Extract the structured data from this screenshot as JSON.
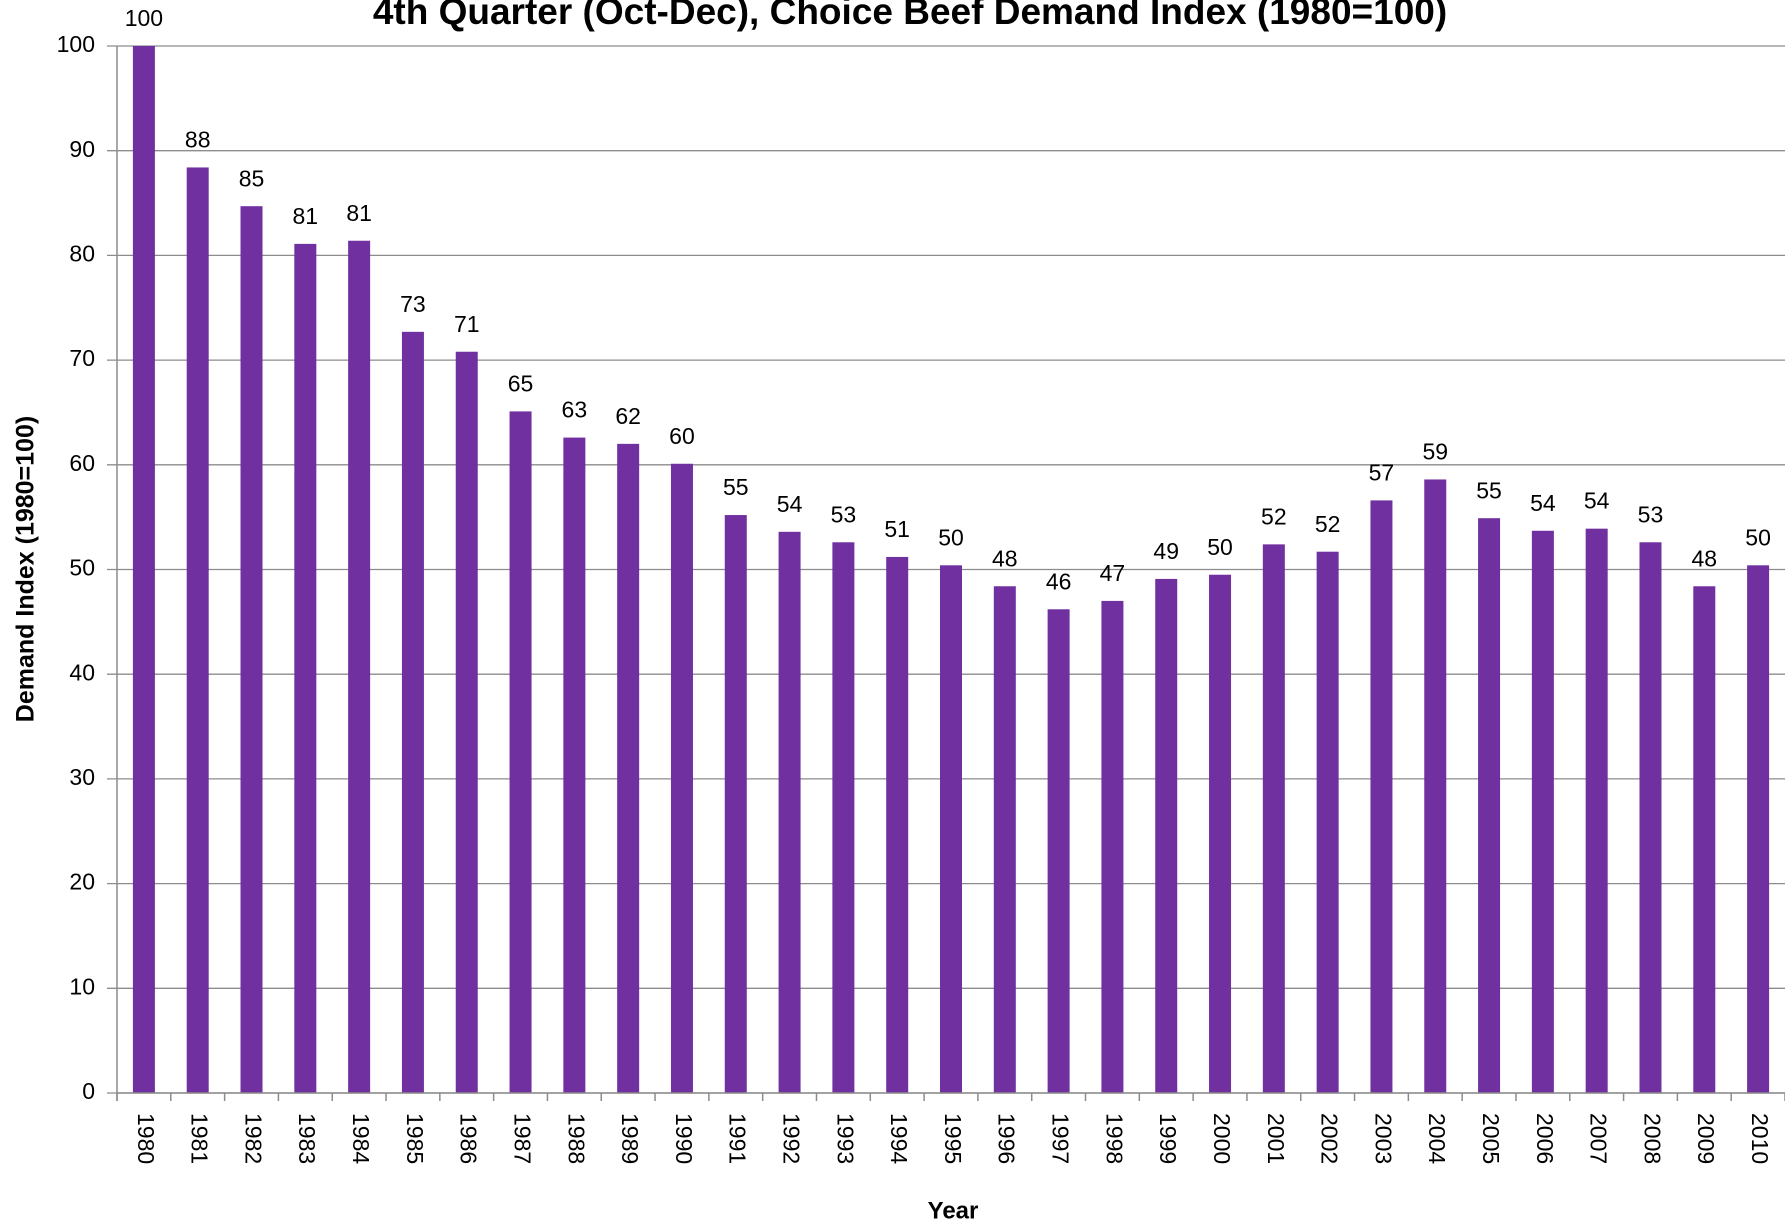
{
  "chart_data": {
    "type": "bar",
    "title": "4th Quarter (Oct-Dec), Choice Beef Demand Index (1980=100)",
    "x_label": "Year",
    "y_label": "Demand Index (1980=100)",
    "categories": [
      "1980",
      "1981",
      "1982",
      "1983",
      "1984",
      "1985",
      "1986",
      "1987",
      "1988",
      "1989",
      "1990",
      "1991",
      "1992",
      "1993",
      "1994",
      "1995",
      "1996",
      "1997",
      "1998",
      "1999",
      "2000",
      "2001",
      "2002",
      "2003",
      "2004",
      "2005",
      "2006",
      "2007",
      "2008",
      "2009",
      "2010"
    ],
    "values": [
      100,
      88.4,
      84.7,
      81.1,
      81.4,
      72.7,
      70.8,
      65.1,
      62.6,
      62.0,
      60.1,
      55.2,
      53.6,
      52.6,
      51.2,
      50.4,
      48.4,
      46.2,
      47.0,
      49.1,
      49.5,
      52.4,
      51.7,
      56.6,
      58.6,
      54.9,
      53.7,
      53.9,
      52.6,
      48.4,
      50.4
    ],
    "value_labels": [
      "100",
      "88",
      "85",
      "81",
      "81",
      "73",
      "71",
      "65",
      "63",
      "62",
      "60",
      "55",
      "54",
      "53",
      "51",
      "50",
      "48",
      "46",
      "47",
      "49",
      "50",
      "52",
      "52",
      "57",
      "59",
      "55",
      "54",
      "54",
      "53",
      "48",
      "50"
    ],
    "color": "#7030a0",
    "ylim": [
      0,
      100
    ],
    "yticks": [
      0,
      10,
      20,
      30,
      40,
      50,
      60,
      70,
      80,
      90,
      100
    ],
    "grid": true
  }
}
